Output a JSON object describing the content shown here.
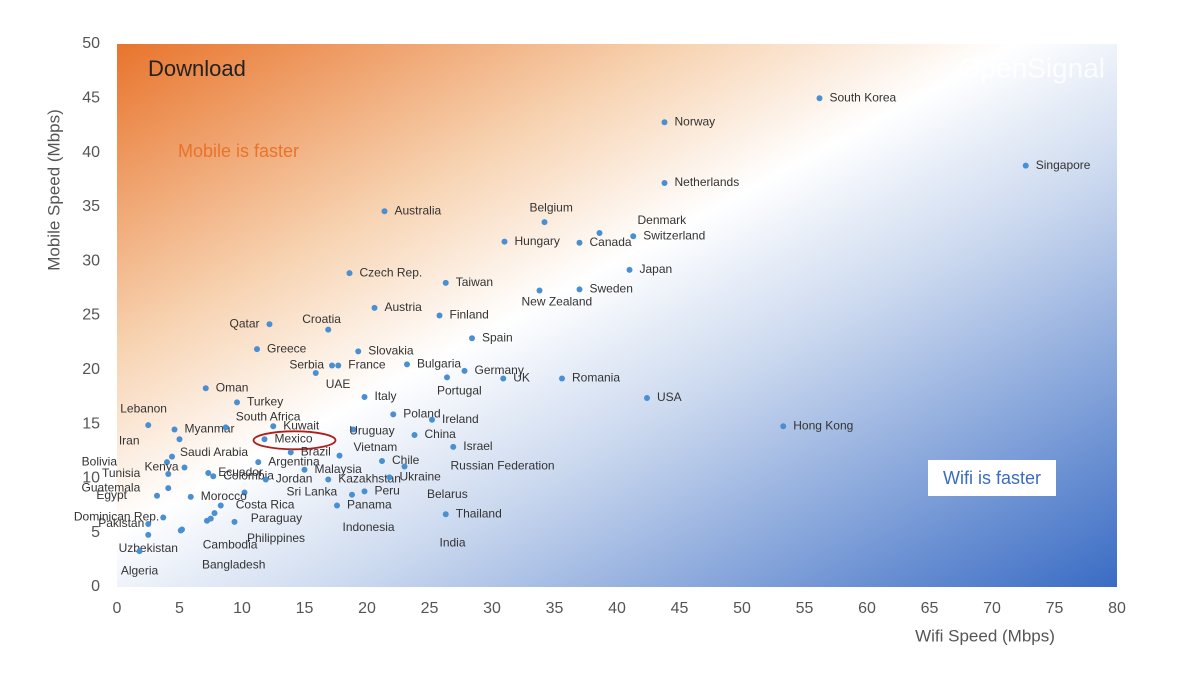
{
  "chart_data": {
    "type": "scatter",
    "title": "Download",
    "watermark": "OpenSignal",
    "annotations": [
      "Mobile is faster",
      "Wifi is faster"
    ],
    "x_label": "Wifi Speed (Mbps)",
    "y_label": "Mobile Speed (Mbps)",
    "xlim": [
      0,
      80
    ],
    "ylim": [
      0,
      50
    ],
    "xticks": [
      0,
      5,
      10,
      15,
      20,
      25,
      30,
      35,
      40,
      45,
      50,
      55,
      60,
      65,
      70,
      75,
      80
    ],
    "yticks": [
      0,
      5,
      10,
      15,
      20,
      25,
      30,
      35,
      40,
      45,
      50
    ],
    "color": "#4a8fd1",
    "highlight": "Mexico",
    "labels": [
      "South Korea",
      "Norway",
      "Singapore",
      "Netherlands",
      "Australia",
      "Belgium",
      "Denmark",
      "Switzerland",
      "Hungary",
      "Canada",
      "Japan",
      "Czech Rep.",
      "Taiwan",
      "Sweden",
      "New Zealand",
      "Austria",
      "Finland",
      "Qatar",
      "Croatia",
      "Spain",
      "Greece",
      "Slovakia",
      "Serbia",
      "France",
      "Bulgaria",
      "Germany",
      "Portugal",
      "UAE",
      "UK",
      "Romania",
      "Oman",
      "USA",
      "Italy",
      "Turkey",
      "Poland",
      "Ireland",
      "Lebanon",
      "Myanmar",
      "Hong Kong",
      "South Africa",
      "Kuwait",
      "Uruguay",
      "China",
      "Mexico",
      "Iran",
      "Israel",
      "Vietnam",
      "Brazil",
      "Saudi Arabia",
      "Bolivia",
      "Argentina",
      "Chile",
      "Malaysia",
      "Kenya",
      "Russian Federation",
      "Ecuador",
      "Colombia",
      "Tunisia",
      "Jordan",
      "Kazakhstan",
      "Ukraine",
      "Guatemala",
      "Peru",
      "Sri Lanka",
      "Egypt",
      "Belarus",
      "Morocco",
      "Costa Rica",
      "Panama",
      "Thailand",
      "Dominican Rep.",
      "Pakistan",
      "Paraguay",
      "Indonesia",
      "Philippines",
      "Cambodia",
      "India",
      "Uzbekistan",
      "Bangladesh",
      "Algeria"
    ],
    "x": [
      56.2,
      43.8,
      72.7,
      43.8,
      21.4,
      34.2,
      38.6,
      41.3,
      31.0,
      37.0,
      41.0,
      18.6,
      26.3,
      37.0,
      33.8,
      20.6,
      25.8,
      12.2,
      16.9,
      28.4,
      11.2,
      19.3,
      17.2,
      17.7,
      23.2,
      27.8,
      26.4,
      15.9,
      30.9,
      35.6,
      7.1,
      42.4,
      19.8,
      9.6,
      22.1,
      25.2,
      2.5,
      4.6,
      53.3,
      8.7,
      12.5,
      18.9,
      23.8,
      11.8,
      5.0,
      26.9,
      17.8,
      13.9,
      4.4,
      4.0,
      11.3,
      21.2,
      15.0,
      5.4,
      23.0,
      7.3,
      7.7,
      4.1,
      11.9,
      16.9,
      21.8,
      4.1,
      19.8,
      10.2,
      3.2,
      18.8,
      5.9,
      8.3,
      17.6,
      26.3,
      3.7,
      2.5,
      7.5,
      9.4,
      7.2,
      5.1,
      7.8,
      2.5,
      5.2,
      1.8
    ],
    "y": [
      45.0,
      42.8,
      38.8,
      37.2,
      34.6,
      33.6,
      32.6,
      32.3,
      31.8,
      31.7,
      29.2,
      28.9,
      28.0,
      27.4,
      27.3,
      25.7,
      25.0,
      24.2,
      23.7,
      22.9,
      21.9,
      21.7,
      20.4,
      20.4,
      20.5,
      19.9,
      19.3,
      19.7,
      19.2,
      19.2,
      18.3,
      17.4,
      17.5,
      17.0,
      15.9,
      15.4,
      14.9,
      14.5,
      14.8,
      14.7,
      14.8,
      14.5,
      14.0,
      13.6,
      13.6,
      12.9,
      12.1,
      12.4,
      12.0,
      11.5,
      11.5,
      11.6,
      10.8,
      11.0,
      11.1,
      10.5,
      10.2,
      10.4,
      9.9,
      9.9,
      10.1,
      9.1,
      8.8,
      8.7,
      8.4,
      8.5,
      8.3,
      7.5,
      7.5,
      6.7,
      6.4,
      5.8,
      6.3,
      6.0,
      6.1,
      5.2,
      6.8,
      4.8,
      5.3,
      3.3
    ]
  }
}
